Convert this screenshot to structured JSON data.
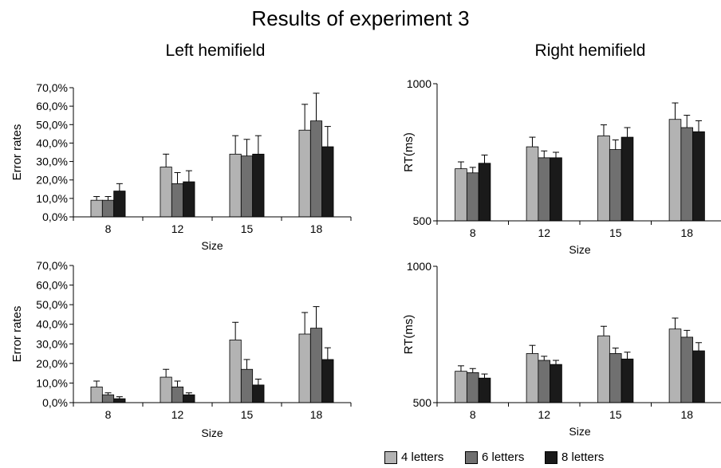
{
  "title": "Results of experiment 3",
  "panel_titles": [
    "Left hemifield",
    "Right hemifield"
  ],
  "colors": {
    "4 letters": "#b3b3b3",
    "6 letters": "#707070",
    "8 letters": "#1a1a1a"
  },
  "legend": [
    "4 letters",
    "6 letters",
    "8 letters"
  ],
  "chart_data": [
    {
      "type": "bar",
      "panel": "Left hemifield",
      "categories": [
        "8",
        "12",
        "15",
        "18"
      ],
      "xlabel": "Size",
      "ylabel": "Error rates",
      "ylim": [
        0,
        0.7
      ],
      "yticks": [
        0,
        0.1,
        0.2,
        0.3,
        0.4,
        0.5,
        0.6,
        0.7
      ],
      "ytick_labels": [
        "0,0%",
        "10,0%",
        "20,0%",
        "30,0%",
        "40,0%",
        "50,0%",
        "60,0%",
        "70,0%"
      ],
      "series": [
        {
          "name": "4 letters",
          "values": [
            0.09,
            0.27,
            0.34,
            0.47
          ],
          "errors": [
            0.02,
            0.07,
            0.1,
            0.14
          ]
        },
        {
          "name": "6 letters",
          "values": [
            0.09,
            0.18,
            0.33,
            0.52
          ],
          "errors": [
            0.02,
            0.06,
            0.09,
            0.15
          ]
        },
        {
          "name": "8 letters",
          "values": [
            0.14,
            0.19,
            0.34,
            0.38
          ],
          "errors": [
            0.04,
            0.06,
            0.1,
            0.11
          ]
        }
      ]
    },
    {
      "type": "bar",
      "panel": "Right hemifield",
      "categories": [
        "8",
        "12",
        "15",
        "18"
      ],
      "xlabel": "Size",
      "ylabel": "RT(ms)",
      "ylim": [
        500,
        1000
      ],
      "yticks": [
        500,
        1000
      ],
      "ytick_labels": [
        "500",
        "1000"
      ],
      "series": [
        {
          "name": "4 letters",
          "values": [
            690,
            770,
            810,
            870
          ],
          "errors": [
            25,
            35,
            40,
            60
          ]
        },
        {
          "name": "6 letters",
          "values": [
            675,
            730,
            760,
            840
          ],
          "errors": [
            20,
            25,
            35,
            45
          ]
        },
        {
          "name": "8 letters",
          "values": [
            710,
            730,
            805,
            825
          ],
          "errors": [
            30,
            20,
            35,
            40
          ]
        }
      ]
    },
    {
      "type": "bar",
      "panel": "Left hemifield",
      "categories": [
        "8",
        "12",
        "15",
        "18"
      ],
      "xlabel": "Size",
      "ylabel": "Error rates",
      "ylim": [
        0,
        0.7
      ],
      "yticks": [
        0,
        0.1,
        0.2,
        0.3,
        0.4,
        0.5,
        0.6,
        0.7
      ],
      "ytick_labels": [
        "0,0%",
        "10,0%",
        "20,0%",
        "30,0%",
        "40,0%",
        "50,0%",
        "60,0%",
        "70,0%"
      ],
      "series": [
        {
          "name": "4 letters",
          "values": [
            0.08,
            0.13,
            0.32,
            0.35
          ],
          "errors": [
            0.03,
            0.04,
            0.09,
            0.11
          ]
        },
        {
          "name": "6 letters",
          "values": [
            0.04,
            0.08,
            0.17,
            0.38
          ],
          "errors": [
            0.01,
            0.03,
            0.05,
            0.11
          ]
        },
        {
          "name": "8 letters",
          "values": [
            0.02,
            0.04,
            0.09,
            0.22
          ],
          "errors": [
            0.01,
            0.01,
            0.03,
            0.06
          ]
        }
      ]
    },
    {
      "type": "bar",
      "panel": "Right hemifield",
      "categories": [
        "8",
        "12",
        "15",
        "18"
      ],
      "xlabel": "Size",
      "ylabel": "RT(ms)",
      "ylim": [
        500,
        1000
      ],
      "yticks": [
        500,
        1000
      ],
      "ytick_labels": [
        "500",
        "1000"
      ],
      "series": [
        {
          "name": "4 letters",
          "values": [
            615,
            680,
            745,
            770
          ],
          "errors": [
            20,
            30,
            35,
            40
          ]
        },
        {
          "name": "6 letters",
          "values": [
            610,
            655,
            680,
            740
          ],
          "errors": [
            15,
            15,
            20,
            25
          ]
        },
        {
          "name": "8 letters",
          "values": [
            590,
            640,
            660,
            690
          ],
          "errors": [
            15,
            15,
            25,
            30
          ]
        }
      ]
    }
  ]
}
